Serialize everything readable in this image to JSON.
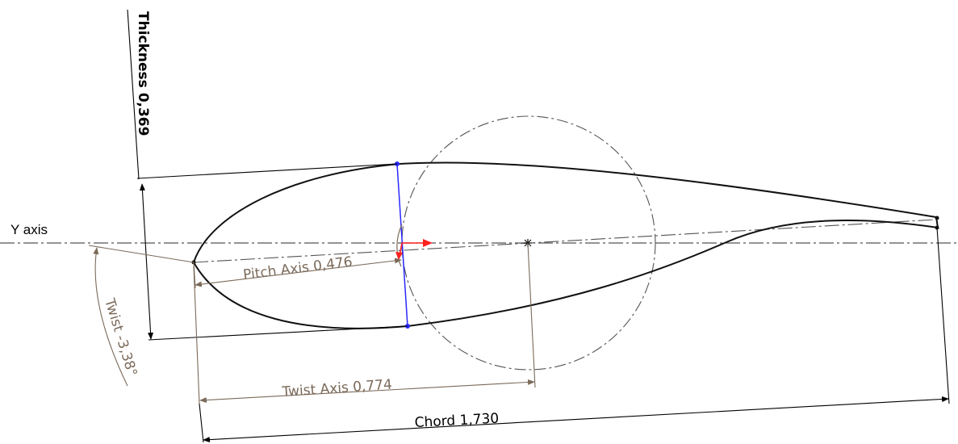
{
  "labels": {
    "thickness": "Thickness 0,369",
    "y_axis": "Y axis",
    "pitch_axis": "Pitch Axis 0,476",
    "twist": "Twist -3,38°",
    "twist_axis": "Twist Axis 0,774",
    "chord": "Chord 1,730"
  },
  "colors": {
    "profile": "#111111",
    "dimension_dark": "#000000",
    "dimension_brown": "#7b6a5a",
    "centerline": "#555555",
    "blue": "#2a2aff",
    "red": "#ff2020"
  },
  "icons": {
    "origin_marker": "star-icon",
    "x_arrow": "arrow-right-icon",
    "y_arrow": "arrow-down-icon"
  }
}
